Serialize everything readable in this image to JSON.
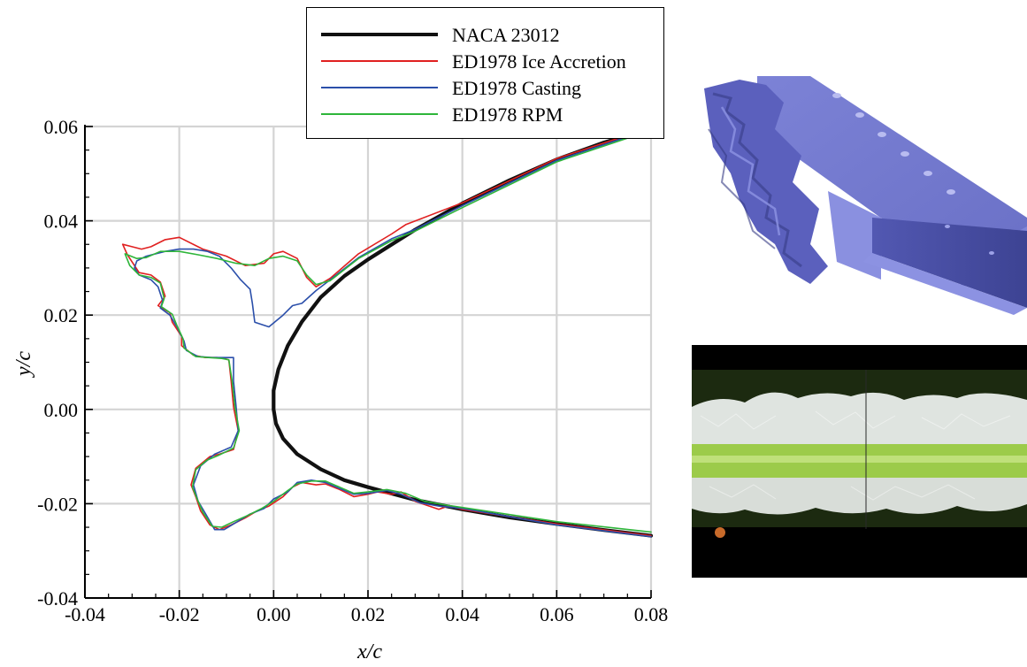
{
  "chart_data": {
    "type": "line",
    "xlabel": "x/c",
    "ylabel": "y/c",
    "xlim": [
      -0.04,
      0.08
    ],
    "ylim": [
      -0.04,
      0.06
    ],
    "xticks": [
      "-0.04",
      "-0.02",
      "0.00",
      "0.02",
      "0.04",
      "0.06",
      "0.08"
    ],
    "yticks": [
      "-0.04",
      "-0.02",
      "0.00",
      "0.02",
      "0.04",
      "0.06"
    ],
    "grid": true,
    "legend_position": "top-right",
    "series": [
      {
        "name": "NACA 23012",
        "color": "#111111",
        "width": 4.2,
        "points": [
          [
            0.08,
            0.0595
          ],
          [
            0.07,
            0.0566
          ],
          [
            0.06,
            0.053
          ],
          [
            0.05,
            0.0486
          ],
          [
            0.04,
            0.0437
          ],
          [
            0.03,
            0.0381
          ],
          [
            0.02,
            0.0318
          ],
          [
            0.015,
            0.0283
          ],
          [
            0.01,
            0.0238
          ],
          [
            0.006,
            0.0186
          ],
          [
            0.003,
            0.0135
          ],
          [
            0.001,
            0.0085
          ],
          [
            0.0,
            0.004
          ],
          [
            0.0,
            0.0
          ],
          [
            0.0005,
            -0.003
          ],
          [
            0.002,
            -0.0062
          ],
          [
            0.005,
            -0.0095
          ],
          [
            0.01,
            -0.0127
          ],
          [
            0.015,
            -0.015
          ],
          [
            0.02,
            -0.0165
          ],
          [
            0.03,
            -0.0192
          ],
          [
            0.04,
            -0.0212
          ],
          [
            0.05,
            -0.0229
          ],
          [
            0.06,
            -0.0243
          ],
          [
            0.07,
            -0.0256
          ],
          [
            0.08,
            -0.0268
          ]
        ]
      },
      {
        "name": "ED1978 Ice Accretion",
        "color": "#e02020",
        "width": 1.6,
        "points": [
          [
            0.08,
            0.0598
          ],
          [
            0.06,
            0.0532
          ],
          [
            0.04,
            0.0438
          ],
          [
            0.028,
            0.0392
          ],
          [
            0.025,
            0.0372
          ],
          [
            0.018,
            0.033
          ],
          [
            0.012,
            0.0278
          ],
          [
            0.009,
            0.026
          ],
          [
            0.007,
            0.028
          ],
          [
            0.005,
            0.032
          ],
          [
            0.002,
            0.0335
          ],
          [
            0.0,
            0.033
          ],
          [
            -0.002,
            0.031
          ],
          [
            -0.006,
            0.0305
          ],
          [
            -0.01,
            0.0325
          ],
          [
            -0.015,
            0.034
          ],
          [
            -0.02,
            0.0365
          ],
          [
            -0.023,
            0.036
          ],
          [
            -0.026,
            0.0345
          ],
          [
            -0.028,
            0.034
          ],
          [
            -0.03,
            0.0345
          ],
          [
            -0.032,
            0.035
          ],
          [
            -0.031,
            0.0328
          ],
          [
            -0.0285,
            0.029
          ],
          [
            -0.026,
            0.0285
          ],
          [
            -0.024,
            0.027
          ],
          [
            -0.023,
            0.024
          ],
          [
            -0.0245,
            0.022
          ],
          [
            -0.022,
            0.0205
          ],
          [
            -0.0215,
            0.0185
          ],
          [
            -0.0195,
            0.0155
          ],
          [
            -0.0195,
            0.0135
          ],
          [
            -0.017,
            0.0115
          ],
          [
            -0.0145,
            0.011
          ],
          [
            -0.012,
            0.011
          ],
          [
            -0.0105,
            0.0108
          ],
          [
            -0.0095,
            0.0105
          ],
          [
            -0.009,
            0.006
          ],
          [
            -0.0085,
            0.0005
          ],
          [
            -0.0075,
            -0.0045
          ],
          [
            -0.0085,
            -0.0085
          ],
          [
            -0.0115,
            -0.0095
          ],
          [
            -0.0135,
            -0.01
          ],
          [
            -0.0165,
            -0.0125
          ],
          [
            -0.0175,
            -0.016
          ],
          [
            -0.0165,
            -0.0185
          ],
          [
            -0.0155,
            -0.0215
          ],
          [
            -0.0135,
            -0.0245
          ],
          [
            -0.0115,
            -0.0255
          ],
          [
            -0.009,
            -0.0245
          ],
          [
            -0.006,
            -0.023
          ],
          [
            -0.0035,
            -0.0215
          ],
          [
            -0.001,
            -0.0205
          ],
          [
            0.002,
            -0.0185
          ],
          [
            0.004,
            -0.0165
          ],
          [
            0.006,
            -0.0155
          ],
          [
            0.009,
            -0.016
          ],
          [
            0.011,
            -0.0158
          ],
          [
            0.014,
            -0.017
          ],
          [
            0.017,
            -0.0185
          ],
          [
            0.02,
            -0.018
          ],
          [
            0.022,
            -0.0175
          ],
          [
            0.025,
            -0.018
          ],
          [
            0.027,
            -0.0175
          ],
          [
            0.03,
            -0.0195
          ],
          [
            0.035,
            -0.0212
          ],
          [
            0.037,
            -0.0205
          ],
          [
            0.04,
            -0.0212
          ],
          [
            0.06,
            -0.0243
          ],
          [
            0.08,
            -0.0268
          ]
        ]
      },
      {
        "name": "ED1978 Casting",
        "color": "#2b4faa",
        "width": 1.6,
        "points": [
          [
            0.08,
            0.0595
          ],
          [
            0.06,
            0.0528
          ],
          [
            0.04,
            0.0432
          ],
          [
            0.03,
            0.0382
          ],
          [
            0.025,
            0.0362
          ],
          [
            0.018,
            0.0322
          ],
          [
            0.012,
            0.0275
          ],
          [
            0.009,
            0.0252
          ],
          [
            0.006,
            0.0225
          ],
          [
            0.004,
            0.022
          ],
          [
            0.002,
            0.02
          ],
          [
            -0.001,
            0.0175
          ],
          [
            -0.004,
            0.0185
          ],
          [
            -0.0045,
            0.0225
          ],
          [
            -0.005,
            0.0255
          ],
          [
            -0.007,
            0.0275
          ],
          [
            -0.009,
            0.03
          ],
          [
            -0.0115,
            0.0325
          ],
          [
            -0.014,
            0.0335
          ],
          [
            -0.017,
            0.034
          ],
          [
            -0.02,
            0.034
          ],
          [
            -0.023,
            0.0335
          ],
          [
            -0.027,
            0.0325
          ],
          [
            -0.029,
            0.0315
          ],
          [
            -0.0295,
            0.03
          ],
          [
            -0.0285,
            0.0285
          ],
          [
            -0.026,
            0.0275
          ],
          [
            -0.0245,
            0.026
          ],
          [
            -0.0235,
            0.023
          ],
          [
            -0.024,
            0.0215
          ],
          [
            -0.022,
            0.02
          ],
          [
            -0.0205,
            0.0175
          ],
          [
            -0.019,
            0.0145
          ],
          [
            -0.0185,
            0.0125
          ],
          [
            -0.016,
            0.0112
          ],
          [
            -0.013,
            0.011
          ],
          [
            -0.01,
            0.011
          ],
          [
            -0.0085,
            0.011
          ],
          [
            -0.0085,
            0.006
          ],
          [
            -0.008,
            0.001
          ],
          [
            -0.0075,
            -0.0045
          ],
          [
            -0.009,
            -0.008
          ],
          [
            -0.0125,
            -0.0095
          ],
          [
            -0.0155,
            -0.012
          ],
          [
            -0.017,
            -0.016
          ],
          [
            -0.016,
            -0.0195
          ],
          [
            -0.0145,
            -0.022
          ],
          [
            -0.0125,
            -0.0255
          ],
          [
            -0.0105,
            -0.0255
          ],
          [
            -0.008,
            -0.024
          ],
          [
            -0.005,
            -0.0222
          ],
          [
            -0.002,
            -0.021
          ],
          [
            0.0,
            -0.019
          ],
          [
            0.003,
            -0.0175
          ],
          [
            0.005,
            -0.0155
          ],
          [
            0.008,
            -0.015
          ],
          [
            0.011,
            -0.0155
          ],
          [
            0.014,
            -0.0168
          ],
          [
            0.017,
            -0.018
          ],
          [
            0.02,
            -0.0178
          ],
          [
            0.024,
            -0.0172
          ],
          [
            0.027,
            -0.018
          ],
          [
            0.031,
            -0.0198
          ],
          [
            0.035,
            -0.0205
          ],
          [
            0.04,
            -0.021
          ],
          [
            0.06,
            -0.0245
          ],
          [
            0.08,
            -0.027
          ]
        ]
      },
      {
        "name": "ED1978 RPM",
        "color": "#2eb53a",
        "width": 1.6,
        "points": [
          [
            0.08,
            0.0592
          ],
          [
            0.06,
            0.0525
          ],
          [
            0.04,
            0.0428
          ],
          [
            0.03,
            0.0378
          ],
          [
            0.025,
            0.0358
          ],
          [
            0.018,
            0.032
          ],
          [
            0.012,
            0.0273
          ],
          [
            0.009,
            0.0265
          ],
          [
            0.007,
            0.0285
          ],
          [
            0.005,
            0.0315
          ],
          [
            0.002,
            0.0325
          ],
          [
            -0.001,
            0.032
          ],
          [
            -0.004,
            0.0305
          ],
          [
            -0.008,
            0.031
          ],
          [
            -0.012,
            0.032
          ],
          [
            -0.016,
            0.0328
          ],
          [
            -0.02,
            0.0335
          ],
          [
            -0.024,
            0.0335
          ],
          [
            -0.027,
            0.0322
          ],
          [
            -0.029,
            0.032
          ],
          [
            -0.0315,
            0.033
          ],
          [
            -0.0305,
            0.0305
          ],
          [
            -0.0285,
            0.0285
          ],
          [
            -0.026,
            0.028
          ],
          [
            -0.024,
            0.0268
          ],
          [
            -0.0232,
            0.0235
          ],
          [
            -0.0238,
            0.0218
          ],
          [
            -0.0215,
            0.0202
          ],
          [
            -0.0205,
            0.0178
          ],
          [
            -0.0192,
            0.015
          ],
          [
            -0.019,
            0.013
          ],
          [
            -0.0165,
            0.0112
          ],
          [
            -0.0138,
            0.011
          ],
          [
            -0.011,
            0.0108
          ],
          [
            -0.0095,
            0.0105
          ],
          [
            -0.0088,
            0.006
          ],
          [
            -0.0082,
            0.0005
          ],
          [
            -0.0073,
            -0.0045
          ],
          [
            -0.0085,
            -0.0082
          ],
          [
            -0.0118,
            -0.0098
          ],
          [
            -0.0142,
            -0.0108
          ],
          [
            -0.0165,
            -0.0128
          ],
          [
            -0.0172,
            -0.0165
          ],
          [
            -0.0162,
            -0.019
          ],
          [
            -0.015,
            -0.0218
          ],
          [
            -0.013,
            -0.0248
          ],
          [
            -0.011,
            -0.025
          ],
          [
            -0.0085,
            -0.0238
          ],
          [
            -0.0055,
            -0.0225
          ],
          [
            -0.0025,
            -0.021
          ],
          [
            0.0,
            -0.0195
          ],
          [
            0.003,
            -0.0172
          ],
          [
            0.005,
            -0.0158
          ],
          [
            0.008,
            -0.0152
          ],
          [
            0.011,
            -0.0152
          ],
          [
            0.014,
            -0.0165
          ],
          [
            0.017,
            -0.0178
          ],
          [
            0.02,
            -0.0175
          ],
          [
            0.024,
            -0.017
          ],
          [
            0.028,
            -0.0178
          ],
          [
            0.032,
            -0.0195
          ],
          [
            0.036,
            -0.0202
          ],
          [
            0.04,
            -0.0208
          ],
          [
            0.06,
            -0.0238
          ],
          [
            0.08,
            -0.026
          ]
        ]
      }
    ]
  }
}
